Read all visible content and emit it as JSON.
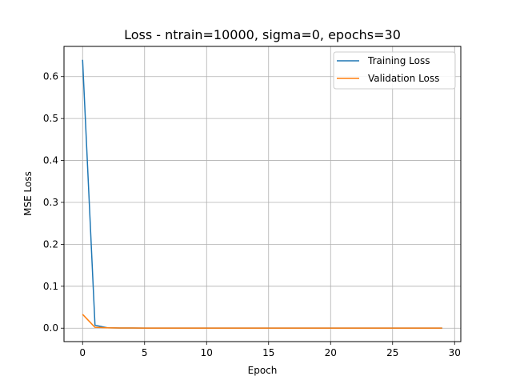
{
  "chart_data": {
    "type": "line",
    "title": "Loss - ntrain=10000, sigma=0, epochs=30",
    "xlabel": "Epoch",
    "ylabel": "MSE Loss",
    "xlim": [
      -1.5,
      30.5
    ],
    "ylim": [
      -0.032,
      0.672
    ],
    "xticks": [
      0,
      5,
      10,
      15,
      20,
      25,
      30
    ],
    "yticks": [
      0.0,
      0.1,
      0.2,
      0.3,
      0.4,
      0.5,
      0.6
    ],
    "xtick_labels": [
      "0",
      "5",
      "10",
      "15",
      "20",
      "25",
      "30"
    ],
    "ytick_labels": [
      "0.0",
      "0.1",
      "0.2",
      "0.3",
      "0.4",
      "0.5",
      "0.6"
    ],
    "grid": true,
    "legend_position": "top-right",
    "x": [
      0,
      1,
      2,
      3,
      4,
      5,
      6,
      7,
      8,
      9,
      10,
      11,
      12,
      13,
      14,
      15,
      16,
      17,
      18,
      19,
      20,
      21,
      22,
      23,
      24,
      25,
      26,
      27,
      28,
      29
    ],
    "series": [
      {
        "name": "Training Loss",
        "color": "#1f77b4",
        "values": [
          0.64,
          0.007,
          0.001,
          0.0005,
          0.0004,
          0.0003,
          0.0003,
          0.0002,
          0.0002,
          0.0002,
          0.0002,
          0.0002,
          0.0001,
          0.0001,
          0.0001,
          0.0001,
          0.0001,
          0.0001,
          0.0001,
          0.0001,
          0.0001,
          0.0001,
          0.0001,
          0.0001,
          0.0001,
          0.0001,
          0.0001,
          0.0001,
          0.0001,
          0.0001
        ]
      },
      {
        "name": "Validation Loss",
        "color": "#ff7f0e",
        "values": [
          0.033,
          0.002,
          0.0008,
          0.0005,
          0.0004,
          0.0003,
          0.0003,
          0.0002,
          0.0002,
          0.0002,
          0.0002,
          0.0002,
          0.0001,
          0.0001,
          0.0001,
          0.0001,
          0.0001,
          0.0001,
          0.0001,
          0.0001,
          0.0001,
          0.0001,
          0.0001,
          0.0001,
          0.0001,
          0.0001,
          0.0001,
          0.0001,
          0.0001,
          0.0001
        ]
      }
    ]
  }
}
